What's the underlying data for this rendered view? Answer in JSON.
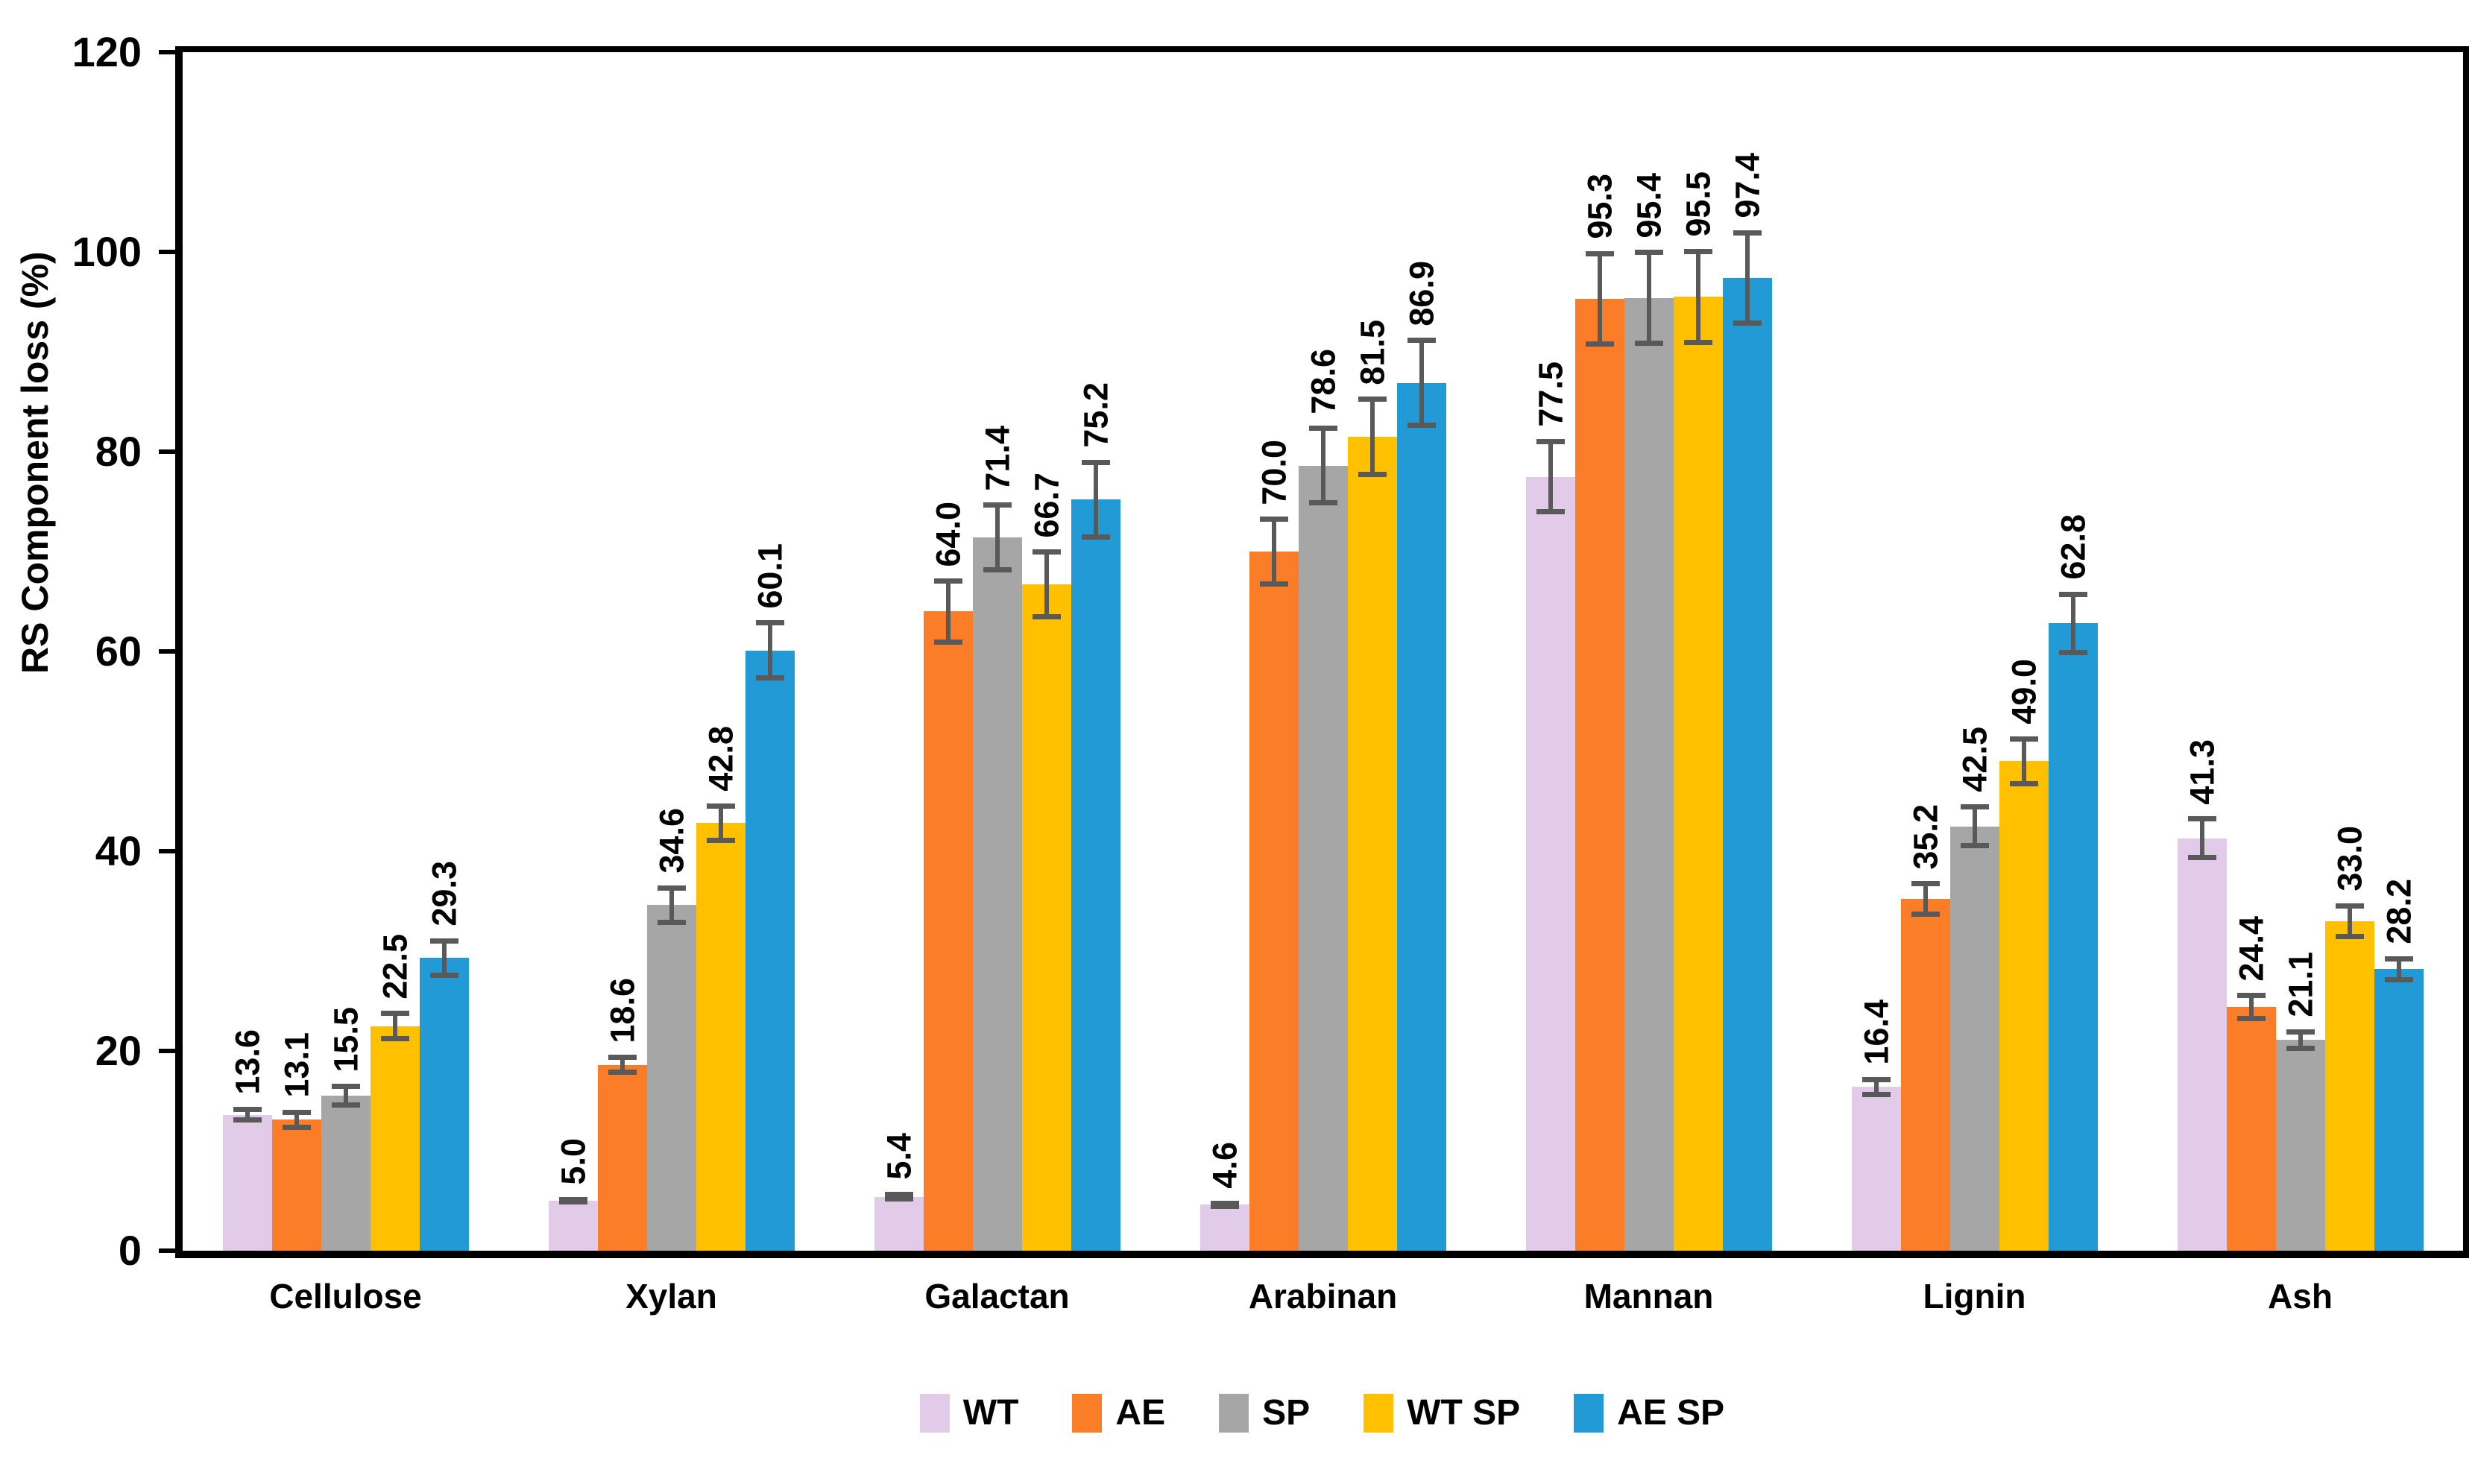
{
  "chart_data": {
    "type": "bar",
    "title": "",
    "xlabel": "",
    "ylabel": "RS Component loss (%)",
    "ylim": [
      0,
      120
    ],
    "yticks": [
      0,
      20,
      40,
      60,
      80,
      100,
      120
    ],
    "grid": false,
    "legend_position": "bottom",
    "error_bar_color": "#595959",
    "categories": [
      "Cellulose",
      "Xylan",
      "Galactan",
      "Arabinan",
      "Mannan",
      "Lignin",
      "Ash"
    ],
    "series": [
      {
        "name": "WT",
        "color": "#E2CBE9",
        "values": [
          13.6,
          5.0,
          5.4,
          4.6,
          77.5,
          16.4,
          41.3
        ],
        "errors": [
          0.8,
          0.4,
          0.5,
          0.4,
          3.8,
          1.0,
          2.2
        ]
      },
      {
        "name": "AE",
        "color": "#FB7D28",
        "values": [
          13.1,
          18.6,
          64.0,
          70.0,
          95.3,
          35.2,
          24.4
        ],
        "errors": [
          1.0,
          1.0,
          3.3,
          3.5,
          4.8,
          1.8,
          1.4
        ]
      },
      {
        "name": "SP",
        "color": "#A6A6A6",
        "values": [
          15.5,
          34.6,
          71.4,
          78.6,
          95.4,
          42.5,
          21.1
        ],
        "errors": [
          1.2,
          2.0,
          3.5,
          4.0,
          4.8,
          2.2,
          1.1
        ]
      },
      {
        "name": "WT SP",
        "color": "#FFC000",
        "values": [
          22.5,
          42.8,
          66.7,
          81.5,
          95.5,
          49.0,
          33.0
        ],
        "errors": [
          1.5,
          2.0,
          3.5,
          4.0,
          4.8,
          2.5,
          1.8
        ]
      },
      {
        "name": "AE SP",
        "color": "#219AD6",
        "values": [
          29.3,
          60.1,
          75.2,
          86.9,
          97.4,
          62.8,
          28.2
        ],
        "errors": [
          2.0,
          3.0,
          4.0,
          4.5,
          4.8,
          3.2,
          1.3
        ]
      }
    ]
  }
}
